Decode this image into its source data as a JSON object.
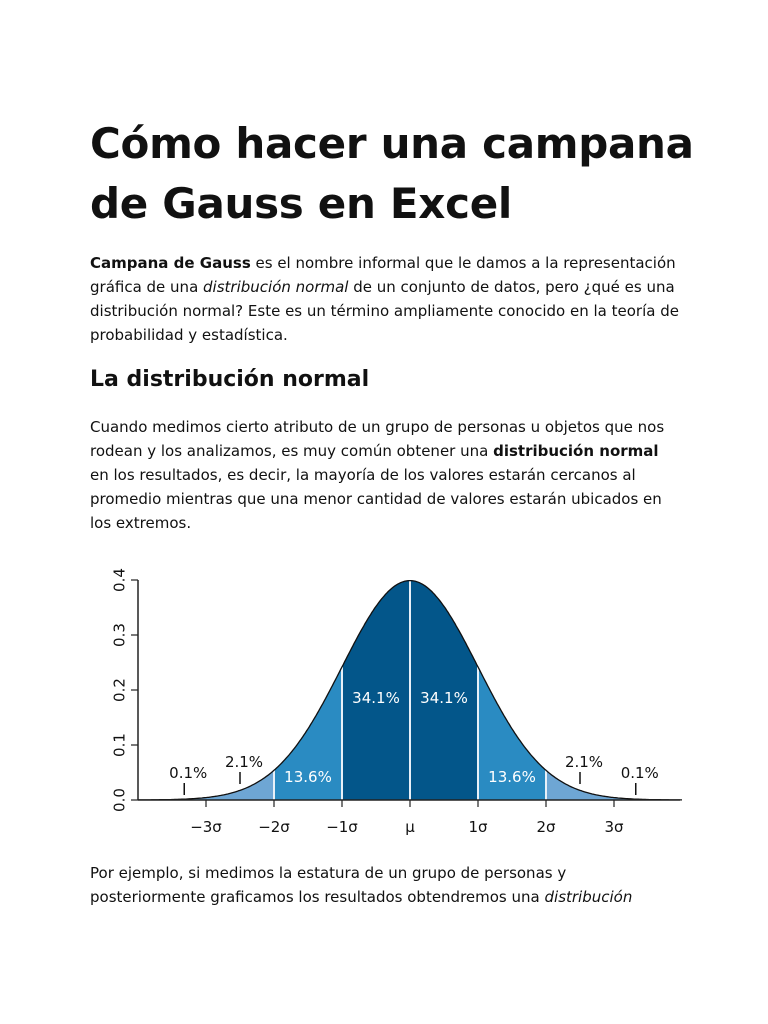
{
  "title": "Cómo hacer una campana de Gauss en Excel",
  "intro": {
    "bold": "Campana de Gauss",
    "t1": " es el nombre informal que le damos a la representación gráfica de una ",
    "italic": "distribución normal",
    "t2": " de un conjunto de datos, pero ¿qué es una distribución normal? Este es un término ampliamente conocido en la teoría de probabilidad y estadística."
  },
  "section_heading": "La distribución normal",
  "para2": {
    "t1": "Cuando medimos cierto atributo de un grupo de personas u objetos que nos rodean y los analizamos, es muy común obtener una ",
    "bold": "distribución normal",
    "t2": " en los resultados, es decir, la mayoría de los valores estarán cercanos al promedio mientras que una menor cantidad de valores estarán ubicados en los extremos."
  },
  "para3": {
    "t1": "Por ejemplo, si medimos la estatura de un grupo de personas y posteriormente graficamos los resultados obtendremos una ",
    "italic": "distribución"
  },
  "chart_data": {
    "type": "area",
    "title": "",
    "xlabel": "",
    "ylabel": "",
    "ylim": [
      0,
      0.4
    ],
    "xlim": [
      -4,
      4
    ],
    "y_ticks": [
      "0.0",
      "0.1",
      "0.2",
      "0.3",
      "0.4"
    ],
    "x_ticks": [
      "−3σ",
      "−2σ",
      "−1σ",
      "μ",
      "1σ",
      "2σ",
      "3σ"
    ],
    "x_tick_values": [
      -3,
      -2,
      -1,
      0,
      1,
      2,
      3
    ],
    "curve": "standard normal density",
    "bands": [
      {
        "from": -3,
        "to": -2,
        "label": "2.1%",
        "color": "#6ea6d4"
      },
      {
        "from": -2,
        "to": -1,
        "label": "13.6%",
        "color": "#2a8bc2"
      },
      {
        "from": -1,
        "to": 0,
        "label": "34.1%",
        "color": "#03568a"
      },
      {
        "from": 0,
        "to": 1,
        "label": "34.1%",
        "color": "#03568a"
      },
      {
        "from": 1,
        "to": 2,
        "label": "13.6%",
        "color": "#2a8bc2"
      },
      {
        "from": 2,
        "to": 3,
        "label": "2.1%",
        "color": "#6ea6d4"
      }
    ],
    "tails": [
      {
        "side": "left",
        "label": "0.1%",
        "color": "#6ea6d4"
      },
      {
        "side": "right",
        "label": "0.1%",
        "color": "#6ea6d4"
      }
    ],
    "grid": false
  }
}
